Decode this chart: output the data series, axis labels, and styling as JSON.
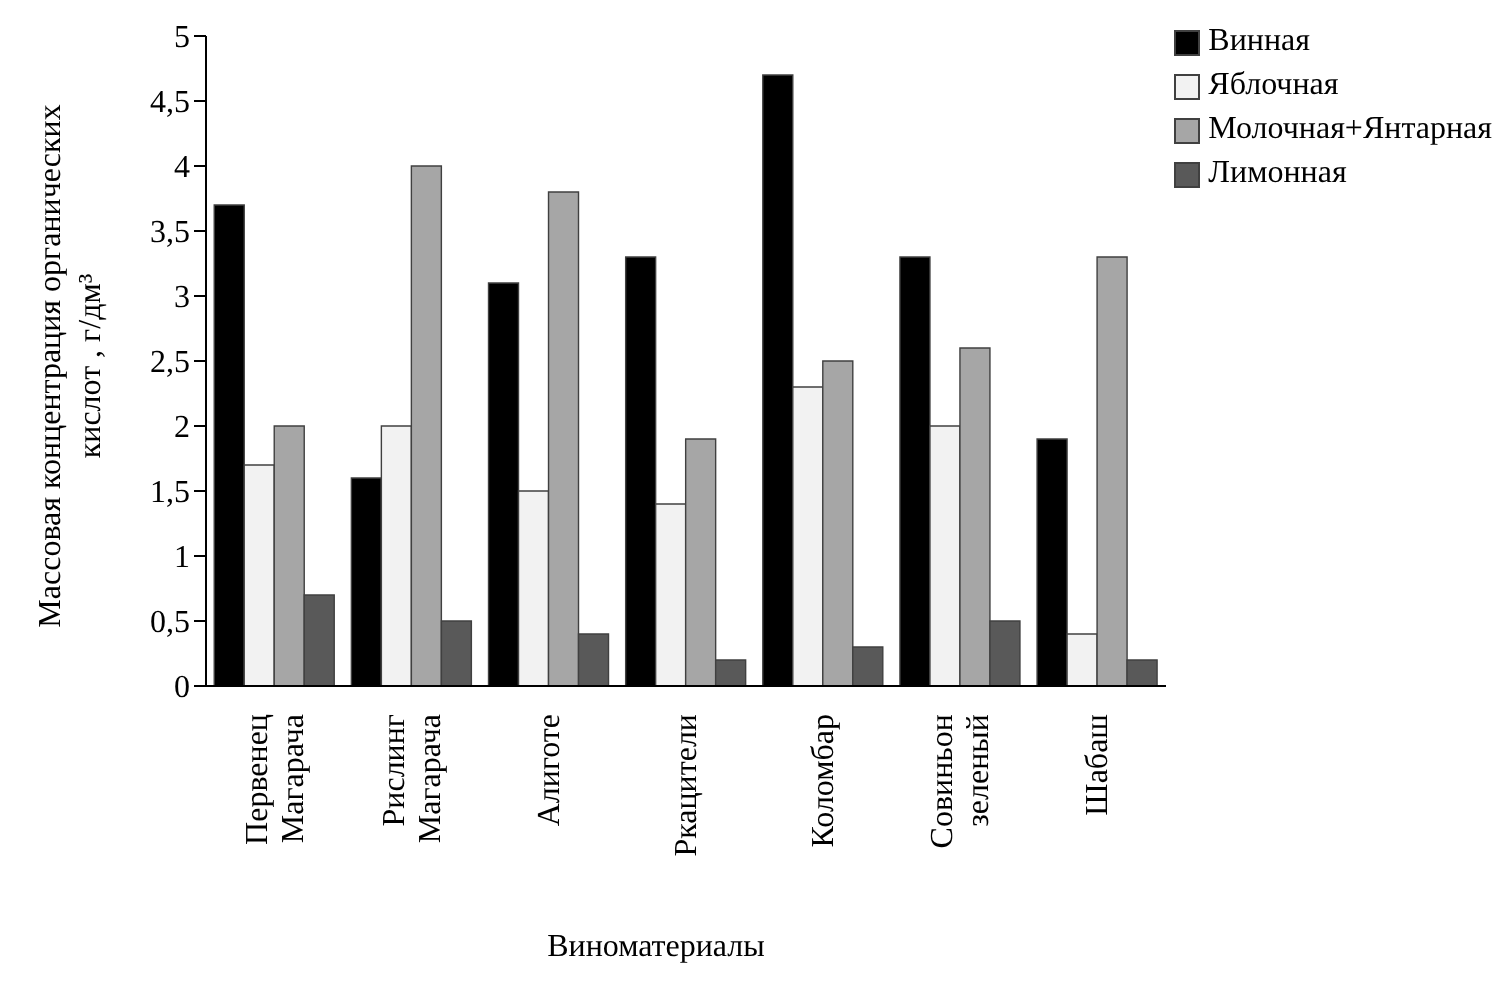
{
  "chart_data": {
    "type": "bar",
    "xlabel": "Виноматериалы",
    "ylabel": "Массовая концентрация органических кислот , г/дм³",
    "categories": [
      "Первенец Магарача",
      "Рислинг Магарача",
      "Алиготе",
      "Ркацители",
      "Коломбар",
      "Совиньон зеленый",
      "Шабаш"
    ],
    "series": [
      {
        "name": "Винная",
        "color": "#000000",
        "values": [
          3.7,
          1.6,
          3.1,
          3.3,
          4.7,
          3.3,
          1.9
        ]
      },
      {
        "name": "Яблочная",
        "color": "#f2f2f2",
        "values": [
          1.7,
          2.0,
          1.5,
          1.4,
          2.3,
          2.0,
          0.4
        ]
      },
      {
        "name": "Молочная+Янтарная",
        "color": "#a6a6a6",
        "values": [
          2.0,
          4.0,
          3.8,
          1.9,
          2.5,
          2.6,
          3.3
        ]
      },
      {
        "name": "Лимонная",
        "color": "#595959",
        "values": [
          0.7,
          0.5,
          0.4,
          0.2,
          0.3,
          0.5,
          0.2
        ]
      }
    ],
    "ylim": [
      0,
      5
    ],
    "yticks": [
      0,
      {
        "value": 0.5,
        "label": "0,5"
      },
      1,
      {
        "value": 1.5,
        "label": "1,5"
      },
      2,
      {
        "value": 2.5,
        "label": "2,5"
      },
      3,
      {
        "value": 3.5,
        "label": "3,5"
      },
      4,
      {
        "value": 4.5,
        "label": "4,5"
      },
      5
    ],
    "grid": false,
    "legend": "top right"
  }
}
